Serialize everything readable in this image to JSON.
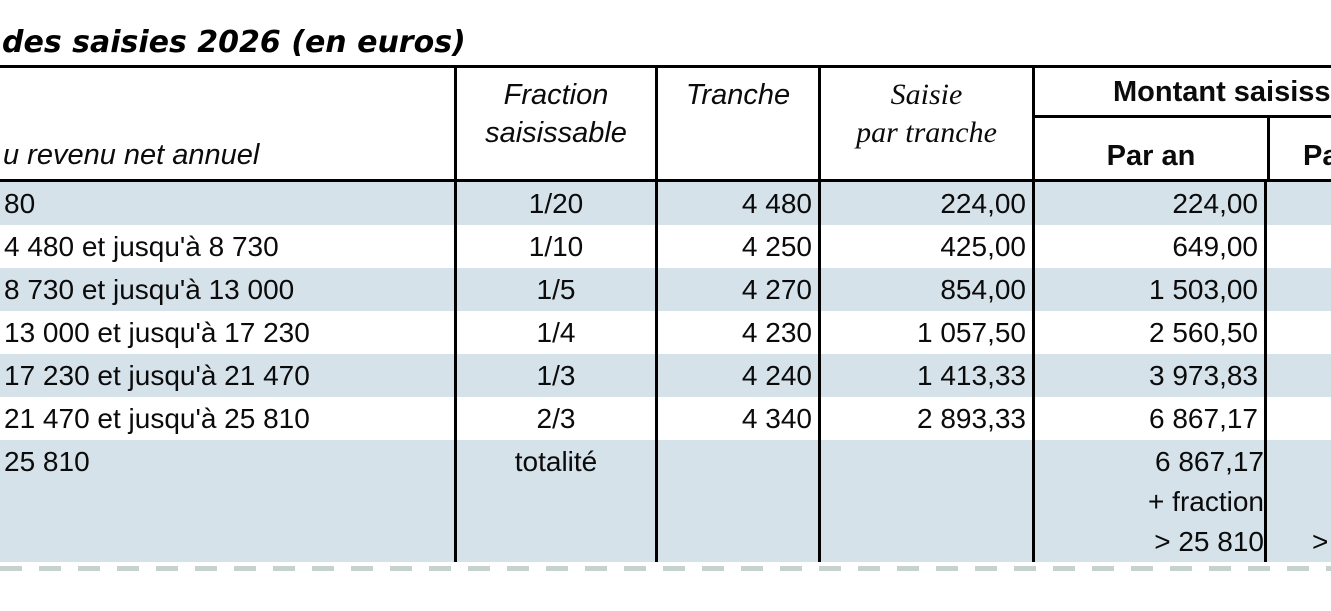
{
  "title": "des saisies 2026 (en euros)",
  "header": {
    "revenu": "u revenu net annuel",
    "fraction_line1": "Fraction",
    "fraction_line2": "saisissable",
    "tranche": "Tranche",
    "saisie_line1": "Saisie",
    "saisie_line2": "par tranche",
    "montant_partial": "Montant saisiss",
    "par_an": "Par an",
    "par_mois_partial": "Pa"
  },
  "rows": [
    {
      "revenu": "80",
      "fraction": "1/20",
      "tranche": "4 480",
      "saisie": "224,00",
      "par_an": "224,00",
      "par_mois": ""
    },
    {
      "revenu": "4 480 et jusqu'à 8 730",
      "fraction": "1/10",
      "tranche": "4 250",
      "saisie": "425,00",
      "par_an": "649,00",
      "par_mois": ""
    },
    {
      "revenu": "8 730 et jusqu'à 13 000",
      "fraction": "1/5",
      "tranche": "4 270",
      "saisie": "854,00",
      "par_an": "1 503,00",
      "par_mois": ""
    },
    {
      "revenu": "13 000 et jusqu'à 17 230",
      "fraction": "1/4",
      "tranche": "4 230",
      "saisie": "1 057,50",
      "par_an": "2 560,50",
      "par_mois": ""
    },
    {
      "revenu": "17 230 et jusqu'à 21 470",
      "fraction": "1/3",
      "tranche": "4 240",
      "saisie": "1 413,33",
      "par_an": "3 973,83",
      "par_mois": ""
    },
    {
      "revenu": "21 470 et jusqu'à 25 810",
      "fraction": "2/3",
      "tranche": "4 340",
      "saisie": "2 893,33",
      "par_an": "6 867,17",
      "par_mois": ""
    },
    {
      "revenu": "25 810",
      "fraction": "totalité",
      "tranche": "",
      "saisie": "",
      "par_an_lines": [
        "6 867,17",
        "+ fraction",
        "> 25 810"
      ],
      "par_mois_partial": ">"
    }
  ],
  "colors": {
    "row_band": "#d6e2ea",
    "border": "#000000",
    "page_break_dash": "#c6d2cd",
    "text": "#0b0b0b"
  }
}
